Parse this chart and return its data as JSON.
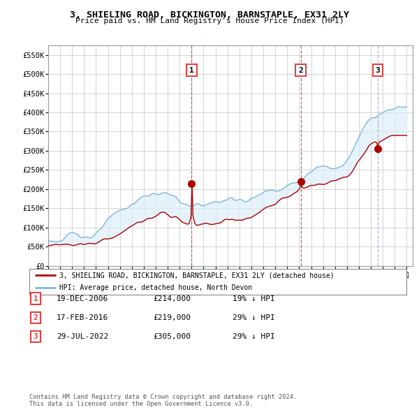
{
  "title": "3, SHIELING ROAD, BICKINGTON, BARNSTAPLE, EX31 2LY",
  "subtitle": "Price paid vs. HM Land Registry's House Price Index (HPI)",
  "ylim": [
    0,
    575000
  ],
  "yticks": [
    0,
    50000,
    100000,
    150000,
    200000,
    250000,
    300000,
    350000,
    400000,
    450000,
    500000,
    550000
  ],
  "ytick_labels": [
    "£0",
    "£50K",
    "£100K",
    "£150K",
    "£200K",
    "£250K",
    "£300K",
    "£350K",
    "£400K",
    "£450K",
    "£500K",
    "£550K"
  ],
  "purchase_years_num": [
    2007.0,
    2016.125,
    2022.583
  ],
  "purchase_prices": [
    214000,
    219000,
    305000
  ],
  "purchase_labels": [
    "1",
    "2",
    "3"
  ],
  "vline_styles": [
    "red-dashed",
    "red-dashed",
    "grey-dashed"
  ],
  "legend_line1": "3, SHIELING ROAD, BICKINGTON, BARNSTAPLE, EX31 2LY (detached house)",
  "legend_line2": "HPI: Average price, detached house, North Devon",
  "table_entries": [
    {
      "num": "1",
      "date": "19-DEC-2006",
      "price": "£214,000",
      "pct": "19% ↓ HPI"
    },
    {
      "num": "2",
      "date": "17-FEB-2016",
      "price": "£219,000",
      "pct": "29% ↓ HPI"
    },
    {
      "num": "3",
      "date": "29-JUL-2022",
      "price": "£305,000",
      "pct": "29% ↓ HPI"
    }
  ],
  "footer": "Contains HM Land Registry data © Crown copyright and database right 2024.\nThis data is licensed under the Open Government Licence v3.0.",
  "hpi_color": "#7fb8dc",
  "hpi_fill_color": "#ddeef8",
  "price_color": "#aa0000",
  "vline_red_color": "#dd4444",
  "vline_grey_color": "#aaaacc",
  "grid_color": "#cccccc",
  "background_color": "#ffffff",
  "plot_bg_color": "#ffffff",
  "xlim_start": 1995.0,
  "xlim_end": 2025.5
}
